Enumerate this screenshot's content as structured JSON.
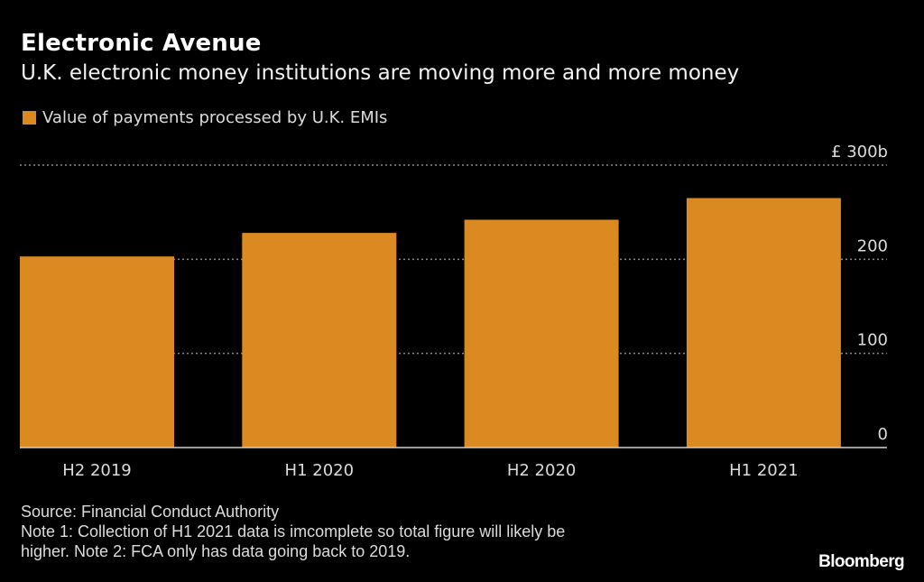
{
  "header": {
    "title": "Electronic Avenue",
    "subtitle": "U.K. electronic money institutions are moving more and more money"
  },
  "legend": [
    {
      "label": "Value of payments processed by U.K. EMIs",
      "color": "#db8a22"
    }
  ],
  "footer": {
    "source": "Source: Financial Conduct Authority",
    "note_line1": "Note 1: Collection of H1 2021 data is imcomplete so total figure will likely be",
    "note_line2": "higher. Note 2: FCA only has data going back to 2019.",
    "brand": "Bloomberg"
  },
  "colors": {
    "background": "#000000",
    "bar": "#db8a22",
    "grid": "#8a8a8a",
    "axis": "#d0d0d0",
    "tick_text": "#dcdcdc"
  },
  "chart_data": {
    "type": "bar",
    "title": "Electronic Avenue",
    "subtitle": "U.K. electronic money institutions are moving more and more money",
    "categories": [
      "H2 2019",
      "H1 2020",
      "H2 2020",
      "H1 2021"
    ],
    "series": [
      {
        "name": "Value of payments processed by U.K. EMIs",
        "values": [
          203,
          228,
          242,
          265
        ]
      }
    ],
    "unit": "£ billions",
    "xlabel": "",
    "ylabel": "",
    "ylim": [
      0,
      300
    ],
    "yticks": [
      0,
      100,
      200,
      300
    ],
    "ytick_labels": [
      "0",
      "100",
      "200",
      "£ 300b"
    ],
    "y_axis_side": "right",
    "grid": true,
    "grid_style": "dotted",
    "legend_position": "top-left"
  }
}
